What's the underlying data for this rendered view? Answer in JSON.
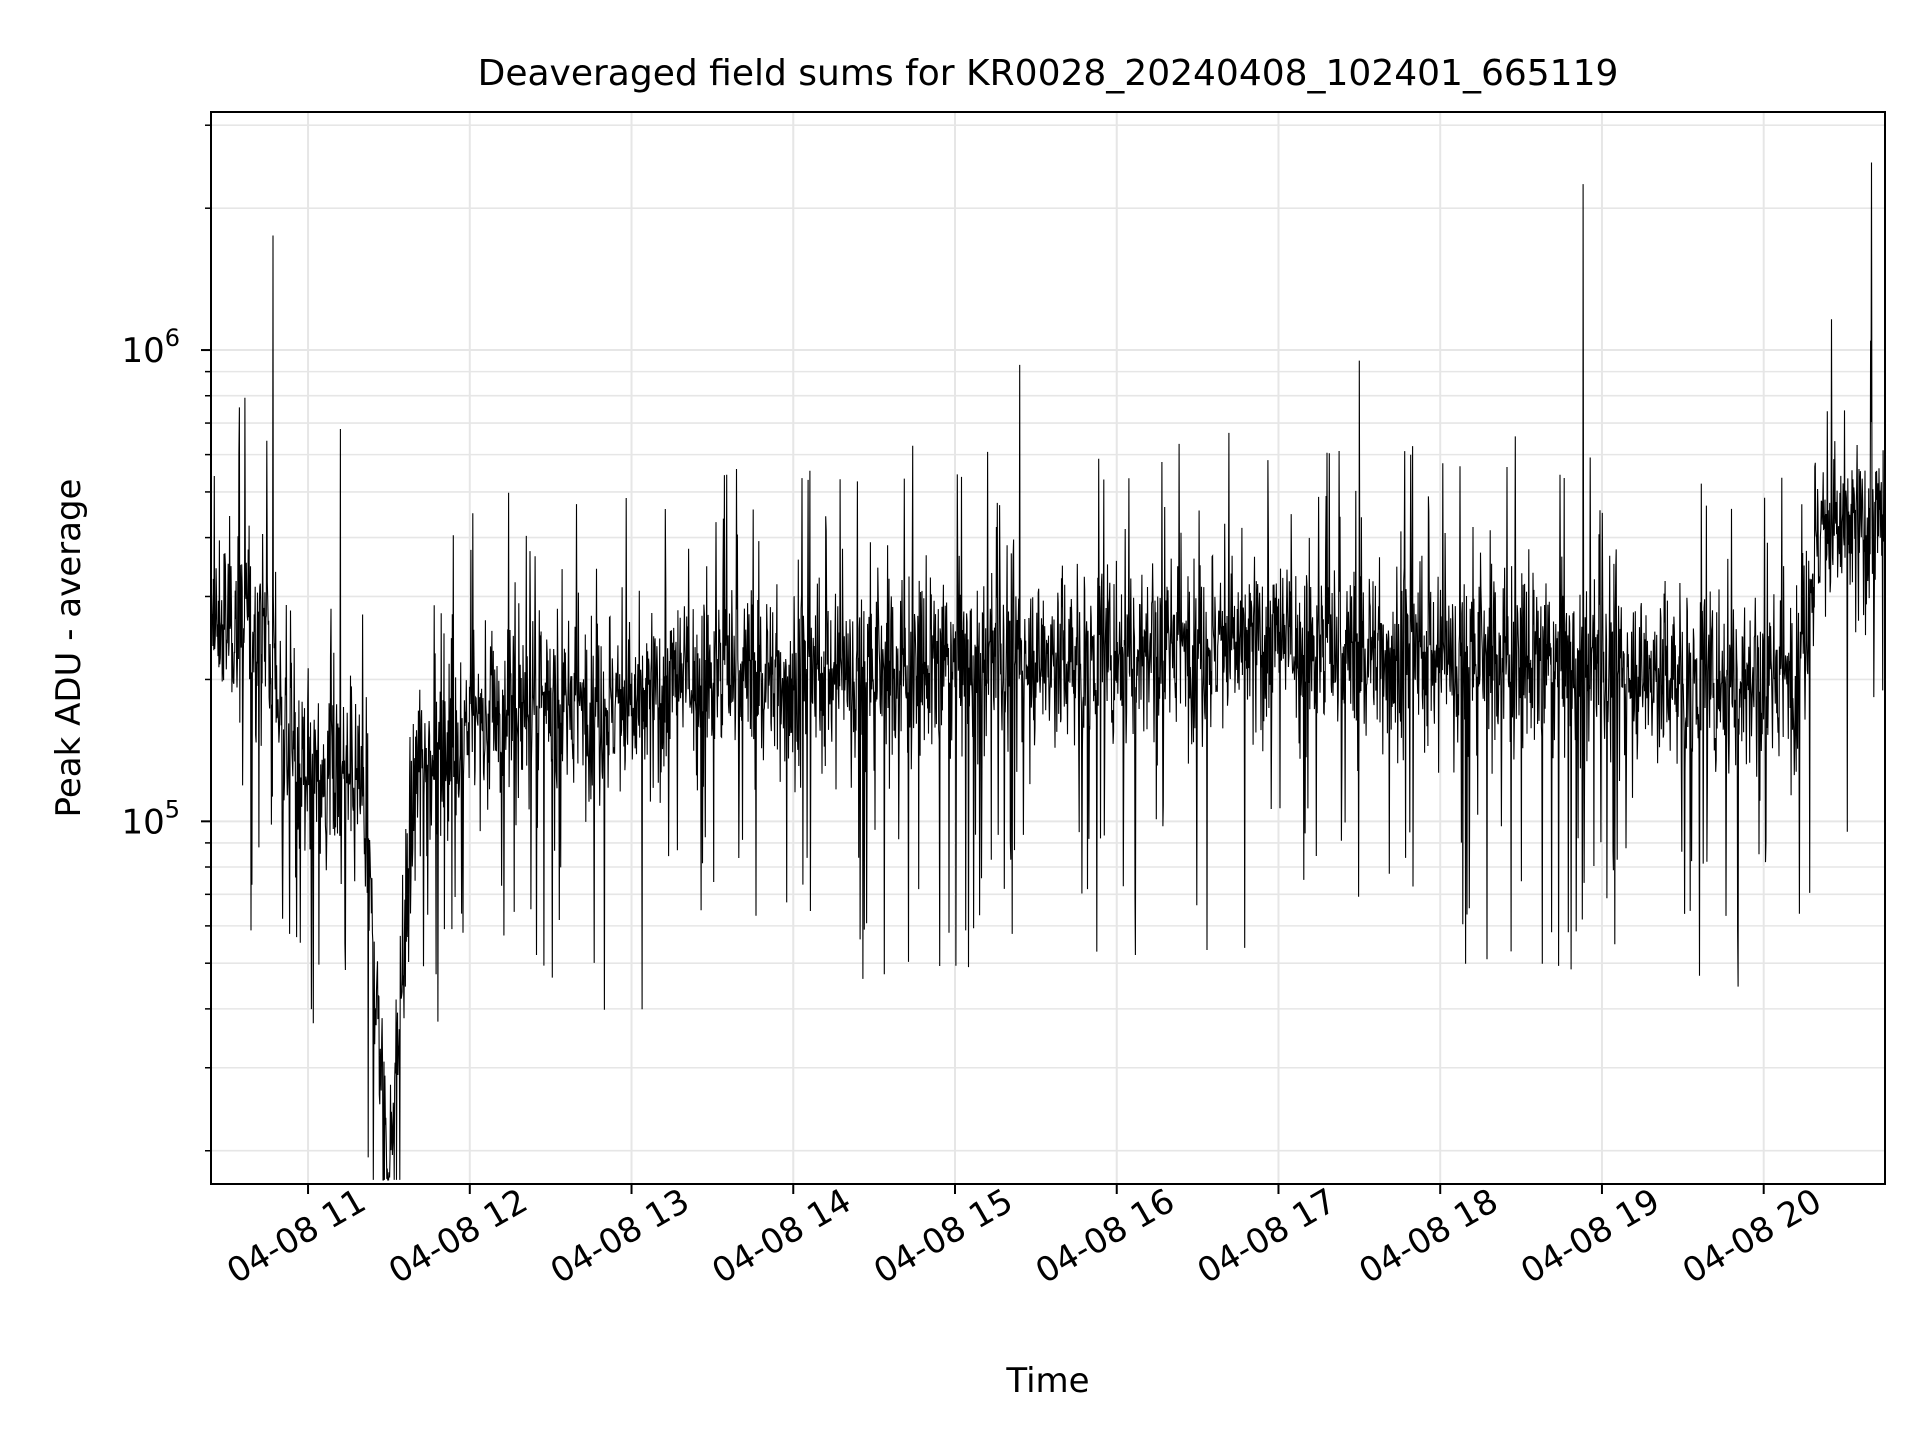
{
  "chart_data": {
    "type": "line",
    "title": "Deaveraged field sums for KR0028_20240408_102401_665119",
    "xlabel": "Time",
    "ylabel": "Peak ADU - average",
    "yscale": "log",
    "grid": true,
    "x_range": [
      "2024-04-08 10:24",
      "2024-04-08 20:45"
    ],
    "ylim": [
      17000,
      3200000
    ],
    "x_ticks": [
      "04-08 11",
      "04-08 12",
      "04-08 13",
      "04-08 14",
      "04-08 15",
      "04-08 16",
      "04-08 17",
      "04-08 18",
      "04-08 19",
      "04-08 20"
    ],
    "y_major_ticks": [
      {
        "value": 100000,
        "base": "10",
        "exp": "5"
      },
      {
        "value": 1000000,
        "base": "10",
        "exp": "6"
      }
    ],
    "line_color": "#000000",
    "series": [
      {
        "name": "",
        "x": [
          "2024-04-08 10:24",
          "2024-04-08 10:35",
          "2024-04-08 10:45",
          "2024-04-08 10:47",
          "2024-04-08 10:50",
          "2024-04-08 10:55",
          "2024-04-08 11:00",
          "2024-04-08 11:07",
          "2024-04-08 11:12",
          "2024-04-08 11:20",
          "2024-04-08 11:30",
          "2024-04-08 11:40",
          "2024-04-08 11:50",
          "2024-04-08 12:00",
          "2024-04-08 12:15",
          "2024-04-08 12:30",
          "2024-04-08 12:45",
          "2024-04-08 13:00",
          "2024-04-08 13:20",
          "2024-04-08 13:40",
          "2024-04-08 14:00",
          "2024-04-08 14:20",
          "2024-04-08 14:40",
          "2024-04-08 15:00",
          "2024-04-08 15:20",
          "2024-04-08 15:24",
          "2024-04-08 15:40",
          "2024-04-08 16:00",
          "2024-04-08 16:20",
          "2024-04-08 16:40",
          "2024-04-08 17:00",
          "2024-04-08 17:20",
          "2024-04-08 17:30",
          "2024-04-08 17:45",
          "2024-04-08 18:00",
          "2024-04-08 18:20",
          "2024-04-08 18:40",
          "2024-04-08 18:53",
          "2024-04-08 19:00",
          "2024-04-08 19:20",
          "2024-04-08 19:40",
          "2024-04-08 20:00",
          "2024-04-08 20:12",
          "2024-04-08 20:20",
          "2024-04-08 20:30",
          "2024-04-08 20:35",
          "2024-04-08 20:40",
          "2024-04-08 20:45"
        ],
        "y": [
          250000,
          270000,
          260000,
          1750000,
          150000,
          140000,
          130000,
          120000,
          680000,
          120000,
          18000,
          130000,
          150000,
          160000,
          170000,
          175000,
          180000,
          170000,
          200000,
          210000,
          195000,
          205000,
          210000,
          215000,
          225000,
          930000,
          220000,
          230000,
          240000,
          235000,
          240000,
          230000,
          950000,
          225000,
          220000,
          225000,
          215000,
          2250000,
          215000,
          205000,
          200000,
          200000,
          205000,
          400000,
          420000,
          410000,
          2500000,
          430000
        ]
      }
    ]
  }
}
